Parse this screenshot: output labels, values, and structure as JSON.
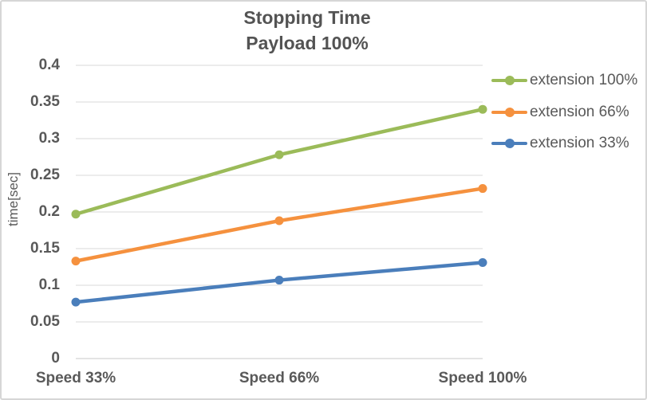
{
  "chart_data": {
    "type": "line",
    "title": "Stopping Time",
    "subtitle": "Payload 100%",
    "ylabel": "time[sec]",
    "categories": [
      "Speed 33%",
      "Speed 66%",
      "Speed 100%"
    ],
    "series": [
      {
        "name": "extension 100%",
        "color": "#9BBB59",
        "values": [
          0.197,
          0.278,
          0.34
        ]
      },
      {
        "name": "extension 66%",
        "color": "#F5913E",
        "values": [
          0.133,
          0.188,
          0.232
        ]
      },
      {
        "name": "extension 33%",
        "color": "#4A7EBB",
        "values": [
          0.077,
          0.107,
          0.131
        ]
      }
    ],
    "ylim": [
      0,
      0.4
    ],
    "ytick_step": 0.05,
    "ytick_labels": [
      "0",
      "0.05",
      "0.1",
      "0.15",
      "0.2",
      "0.25",
      "0.3",
      "0.35",
      "0.4"
    ],
    "grid": true,
    "legend_position": "right"
  },
  "colors": {
    "grid": "#D9D9D9",
    "axis_line": "#C9C9C9",
    "text": "#595959",
    "title": "#535353",
    "border": "#D6D6D6"
  }
}
